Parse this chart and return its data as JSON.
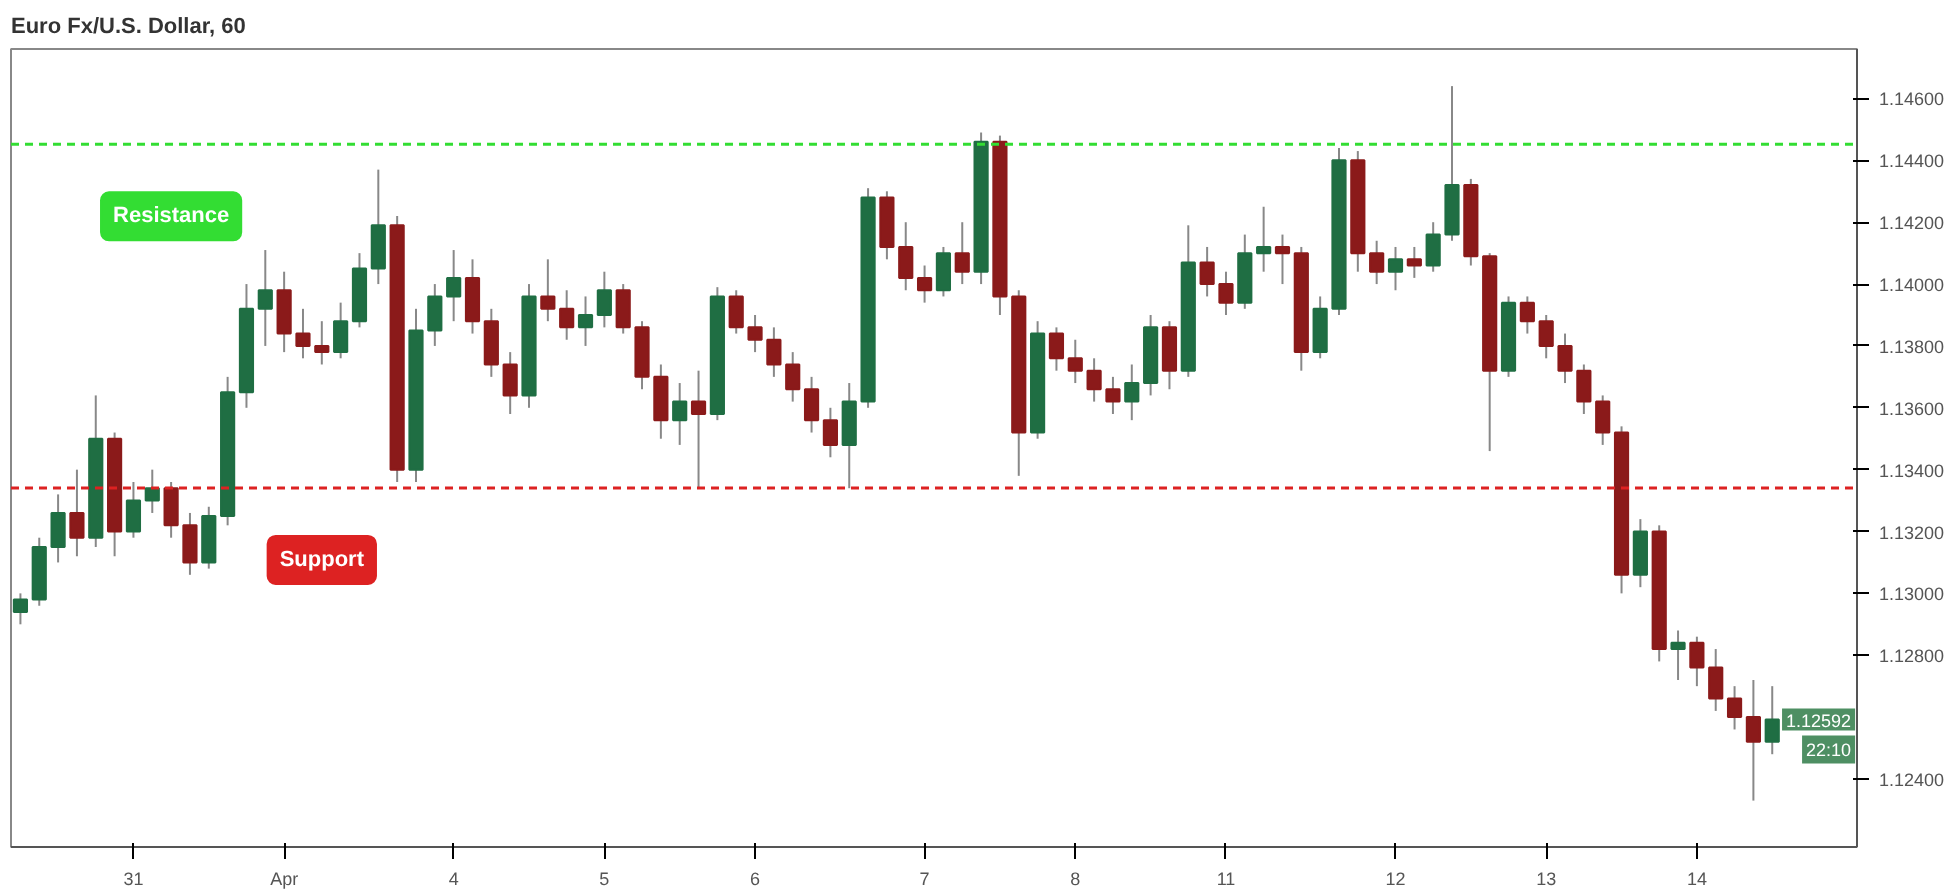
{
  "chart_data": {
    "type": "candlestick",
    "title": "Euro Fx/U.S. Dollar, 60",
    "categories": [
      null,
      null,
      null,
      null,
      null,
      null,
      "31",
      null,
      null,
      null,
      null,
      null,
      null,
      null,
      "Apr",
      null,
      null,
      null,
      null,
      null,
      null,
      null,
      null,
      "4",
      null,
      null,
      null,
      null,
      null,
      null,
      null,
      "5",
      null,
      null,
      null,
      null,
      null,
      null,
      null,
      "6",
      null,
      null,
      null,
      null,
      null,
      null,
      null,
      null,
      "7",
      null,
      null,
      null,
      null,
      null,
      null,
      null,
      "8",
      null,
      null,
      null,
      null,
      null,
      null,
      null,
      "11",
      null,
      null,
      null,
      null,
      null,
      null,
      null,
      null,
      "12",
      null,
      null,
      null,
      null,
      null,
      null,
      null,
      "13",
      null,
      null,
      null,
      null,
      null,
      null,
      null,
      "14",
      null,
      null,
      null,
      null
    ],
    "ohlc": [
      [
        1.1294,
        1.13,
        1.129,
        1.1298
      ],
      [
        1.1298,
        1.1318,
        1.1296,
        1.1315
      ],
      [
        1.1315,
        1.1332,
        1.131,
        1.1326
      ],
      [
        1.1326,
        1.134,
        1.1312,
        1.1318
      ],
      [
        1.1318,
        1.1364,
        1.1315,
        1.135
      ],
      [
        1.135,
        1.1352,
        1.1312,
        1.132
      ],
      [
        1.132,
        1.1336,
        1.1318,
        1.133
      ],
      [
        1.133,
        1.134,
        1.1326,
        1.1334
      ],
      [
        1.1334,
        1.1336,
        1.1318,
        1.1322
      ],
      [
        1.1322,
        1.1326,
        1.1306,
        1.131
      ],
      [
        1.131,
        1.1328,
        1.1308,
        1.1325
      ],
      [
        1.1325,
        1.137,
        1.1322,
        1.1365
      ],
      [
        1.1365,
        1.14,
        1.136,
        1.1392
      ],
      [
        1.1392,
        1.1411,
        1.138,
        1.1398
      ],
      [
        1.1398,
        1.1404,
        1.1378,
        1.1384
      ],
      [
        1.1384,
        1.1392,
        1.1376,
        1.138
      ],
      [
        1.138,
        1.1388,
        1.1374,
        1.1378
      ],
      [
        1.1378,
        1.1394,
        1.1376,
        1.1388
      ],
      [
        1.1388,
        1.141,
        1.1386,
        1.1405
      ],
      [
        1.1405,
        1.1437,
        1.14,
        1.1419
      ],
      [
        1.1419,
        1.1422,
        1.1336,
        1.134
      ],
      [
        1.134,
        1.1392,
        1.1336,
        1.1385
      ],
      [
        1.1385,
        1.14,
        1.138,
        1.1396
      ],
      [
        1.1396,
        1.1411,
        1.1388,
        1.1402
      ],
      [
        1.1402,
        1.1408,
        1.1384,
        1.1388
      ],
      [
        1.1388,
        1.1392,
        1.137,
        1.1374
      ],
      [
        1.1374,
        1.1378,
        1.1358,
        1.1364
      ],
      [
        1.1364,
        1.14,
        1.136,
        1.1396
      ],
      [
        1.1396,
        1.1408,
        1.1388,
        1.1392
      ],
      [
        1.1392,
        1.1398,
        1.1382,
        1.1386
      ],
      [
        1.1386,
        1.1396,
        1.138,
        1.139
      ],
      [
        1.139,
        1.1404,
        1.1386,
        1.1398
      ],
      [
        1.1398,
        1.14,
        1.1384,
        1.1386
      ],
      [
        1.1386,
        1.1388,
        1.1366,
        1.137
      ],
      [
        1.137,
        1.1374,
        1.135,
        1.1356
      ],
      [
        1.1356,
        1.1368,
        1.1348,
        1.1362
      ],
      [
        1.1362,
        1.1372,
        1.1334,
        1.1358
      ],
      [
        1.1358,
        1.1399,
        1.1356,
        1.1396
      ],
      [
        1.1396,
        1.1398,
        1.1384,
        1.1386
      ],
      [
        1.1386,
        1.139,
        1.1378,
        1.1382
      ],
      [
        1.1382,
        1.1386,
        1.137,
        1.1374
      ],
      [
        1.1374,
        1.1378,
        1.1362,
        1.1366
      ],
      [
        1.1366,
        1.137,
        1.1352,
        1.1356
      ],
      [
        1.1356,
        1.136,
        1.1344,
        1.1348
      ],
      [
        1.1348,
        1.1368,
        1.1334,
        1.1362
      ],
      [
        1.1362,
        1.1431,
        1.136,
        1.1428
      ],
      [
        1.1428,
        1.143,
        1.1408,
        1.1412
      ],
      [
        1.1412,
        1.142,
        1.1398,
        1.1402
      ],
      [
        1.1402,
        1.1406,
        1.1394,
        1.1398
      ],
      [
        1.1398,
        1.1412,
        1.1396,
        1.141
      ],
      [
        1.141,
        1.142,
        1.14,
        1.1404
      ],
      [
        1.1404,
        1.1449,
        1.14,
        1.1446
      ],
      [
        1.1446,
        1.1448,
        1.139,
        1.1396
      ],
      [
        1.1396,
        1.1398,
        1.1338,
        1.1352
      ],
      [
        1.1352,
        1.1388,
        1.135,
        1.1384
      ],
      [
        1.1384,
        1.1386,
        1.1372,
        1.1376
      ],
      [
        1.1376,
        1.1382,
        1.1368,
        1.1372
      ],
      [
        1.1372,
        1.1376,
        1.1362,
        1.1366
      ],
      [
        1.1366,
        1.137,
        1.1358,
        1.1362
      ],
      [
        1.1362,
        1.1374,
        1.1356,
        1.1368
      ],
      [
        1.1368,
        1.139,
        1.1364,
        1.1386
      ],
      [
        1.1386,
        1.1388,
        1.1366,
        1.1372
      ],
      [
        1.1372,
        1.1419,
        1.137,
        1.1407
      ],
      [
        1.1407,
        1.1412,
        1.1396,
        1.14
      ],
      [
        1.14,
        1.1404,
        1.139,
        1.1394
      ],
      [
        1.1394,
        1.1416,
        1.1392,
        1.141
      ],
      [
        1.141,
        1.1425,
        1.1404,
        1.1412
      ],
      [
        1.1412,
        1.1416,
        1.14,
        1.141
      ],
      [
        1.141,
        1.1412,
        1.1372,
        1.1378
      ],
      [
        1.1378,
        1.1396,
        1.1376,
        1.1392
      ],
      [
        1.1392,
        1.1444,
        1.139,
        1.144
      ],
      [
        1.144,
        1.1443,
        1.1404,
        1.141
      ],
      [
        1.141,
        1.1414,
        1.14,
        1.1404
      ],
      [
        1.1404,
        1.1412,
        1.1398,
        1.1408
      ],
      [
        1.1408,
        1.1412,
        1.1402,
        1.1406
      ],
      [
        1.1406,
        1.142,
        1.1404,
        1.1416
      ],
      [
        1.1416,
        1.1464,
        1.1414,
        1.1432
      ],
      [
        1.1432,
        1.1434,
        1.1406,
        1.1409
      ],
      [
        1.1409,
        1.141,
        1.1346,
        1.1372
      ],
      [
        1.1372,
        1.1396,
        1.137,
        1.1394
      ],
      [
        1.1394,
        1.1396,
        1.1384,
        1.1388
      ],
      [
        1.1388,
        1.139,
        1.1376,
        1.138
      ],
      [
        1.138,
        1.1384,
        1.1368,
        1.1372
      ],
      [
        1.1372,
        1.1374,
        1.1358,
        1.1362
      ],
      [
        1.1362,
        1.1364,
        1.1348,
        1.1352
      ],
      [
        1.1352,
        1.1354,
        1.13,
        1.1306
      ],
      [
        1.1306,
        1.1324,
        1.1302,
        1.132
      ],
      [
        1.132,
        1.1322,
        1.1278,
        1.1282
      ],
      [
        1.1282,
        1.1288,
        1.1272,
        1.1284
      ],
      [
        1.1284,
        1.1286,
        1.127,
        1.1276
      ],
      [
        1.1276,
        1.1282,
        1.1262,
        1.1266
      ],
      [
        1.1266,
        1.127,
        1.1256,
        1.126
      ],
      [
        1.126,
        1.1272,
        1.1233,
        1.1252
      ],
      [
        1.1252,
        1.127,
        1.1248,
        1.12592
      ]
    ],
    "colors": [
      "#1f6e43",
      "#1f6e43",
      "#1f6e43",
      "#8b1a1a",
      "#1f6e43",
      "#8b1a1a",
      "#1f6e43",
      "#1f6e43",
      "#8b1a1a",
      "#8b1a1a",
      "#1f6e43",
      "#1f6e43",
      "#1f6e43",
      "#1f6e43",
      "#8b1a1a",
      "#8b1a1a",
      "#8b1a1a",
      "#1f6e43",
      "#1f6e43",
      "#1f6e43",
      "#8b1a1a",
      "#1f6e43",
      "#1f6e43",
      "#1f6e43",
      "#8b1a1a",
      "#8b1a1a",
      "#8b1a1a",
      "#1f6e43",
      "#8b1a1a",
      "#8b1a1a",
      "#1f6e43",
      "#1f6e43",
      "#8b1a1a",
      "#8b1a1a",
      "#8b1a1a",
      "#1f6e43",
      "#8b1a1a",
      "#1f6e43",
      "#8b1a1a",
      "#8b1a1a",
      "#8b1a1a",
      "#8b1a1a",
      "#8b1a1a",
      "#8b1a1a",
      "#1f6e43",
      "#1f6e43",
      "#8b1a1a",
      "#8b1a1a",
      "#8b1a1a",
      "#1f6e43",
      "#8b1a1a",
      "#1f6e43",
      "#8b1a1a",
      "#8b1a1a",
      "#1f6e43",
      "#8b1a1a",
      "#8b1a1a",
      "#8b1a1a",
      "#8b1a1a",
      "#1f6e43",
      "#1f6e43",
      "#8b1a1a",
      "#1f6e43",
      "#8b1a1a",
      "#8b1a1a",
      "#1f6e43",
      "#1f6e43",
      "#8b1a1a",
      "#8b1a1a",
      "#1f6e43",
      "#1f6e43",
      "#8b1a1a",
      "#8b1a1a",
      "#1f6e43",
      "#8b1a1a",
      "#1f6e43",
      "#1f6e43",
      "#8b1a1a",
      "#8b1a1a",
      "#1f6e43",
      "#8b1a1a",
      "#8b1a1a",
      "#8b1a1a",
      "#8b1a1a",
      "#8b1a1a",
      "#8b1a1a",
      "#1f6e43",
      "#8b1a1a",
      "#1f6e43",
      "#8b1a1a",
      "#8b1a1a",
      "#8b1a1a",
      "#8b1a1a",
      "#1f6e43"
    ],
    "ylim": [
      1.1218,
      1.1476
    ],
    "yticks": [
      {
        "value": 1.124,
        "label": "1.12400"
      },
      {
        "value": 1.128,
        "label": "1.12800"
      },
      {
        "value": 1.13,
        "label": "1.13000"
      },
      {
        "value": 1.132,
        "label": "1.13200"
      },
      {
        "value": 1.134,
        "label": "1.13400"
      },
      {
        "value": 1.136,
        "label": "1.13600"
      },
      {
        "value": 1.138,
        "label": "1.13800"
      },
      {
        "value": 1.14,
        "label": "1.14000"
      },
      {
        "value": 1.142,
        "label": "1.14200"
      },
      {
        "value": 1.144,
        "label": "1.14400"
      },
      {
        "value": 1.146,
        "label": "1.14600"
      }
    ],
    "ref_lines": [
      {
        "axis": "y",
        "value": 1.14452,
        "color": "#33dd33",
        "line_style": "dashed"
      },
      {
        "axis": "y",
        "value": 1.13341,
        "color": "#dd2222",
        "line_style": "dashed"
      }
    ],
    "annotations": [
      "Resistance",
      "Support",
      "1.12592",
      "22:10"
    ],
    "grid": false
  }
}
